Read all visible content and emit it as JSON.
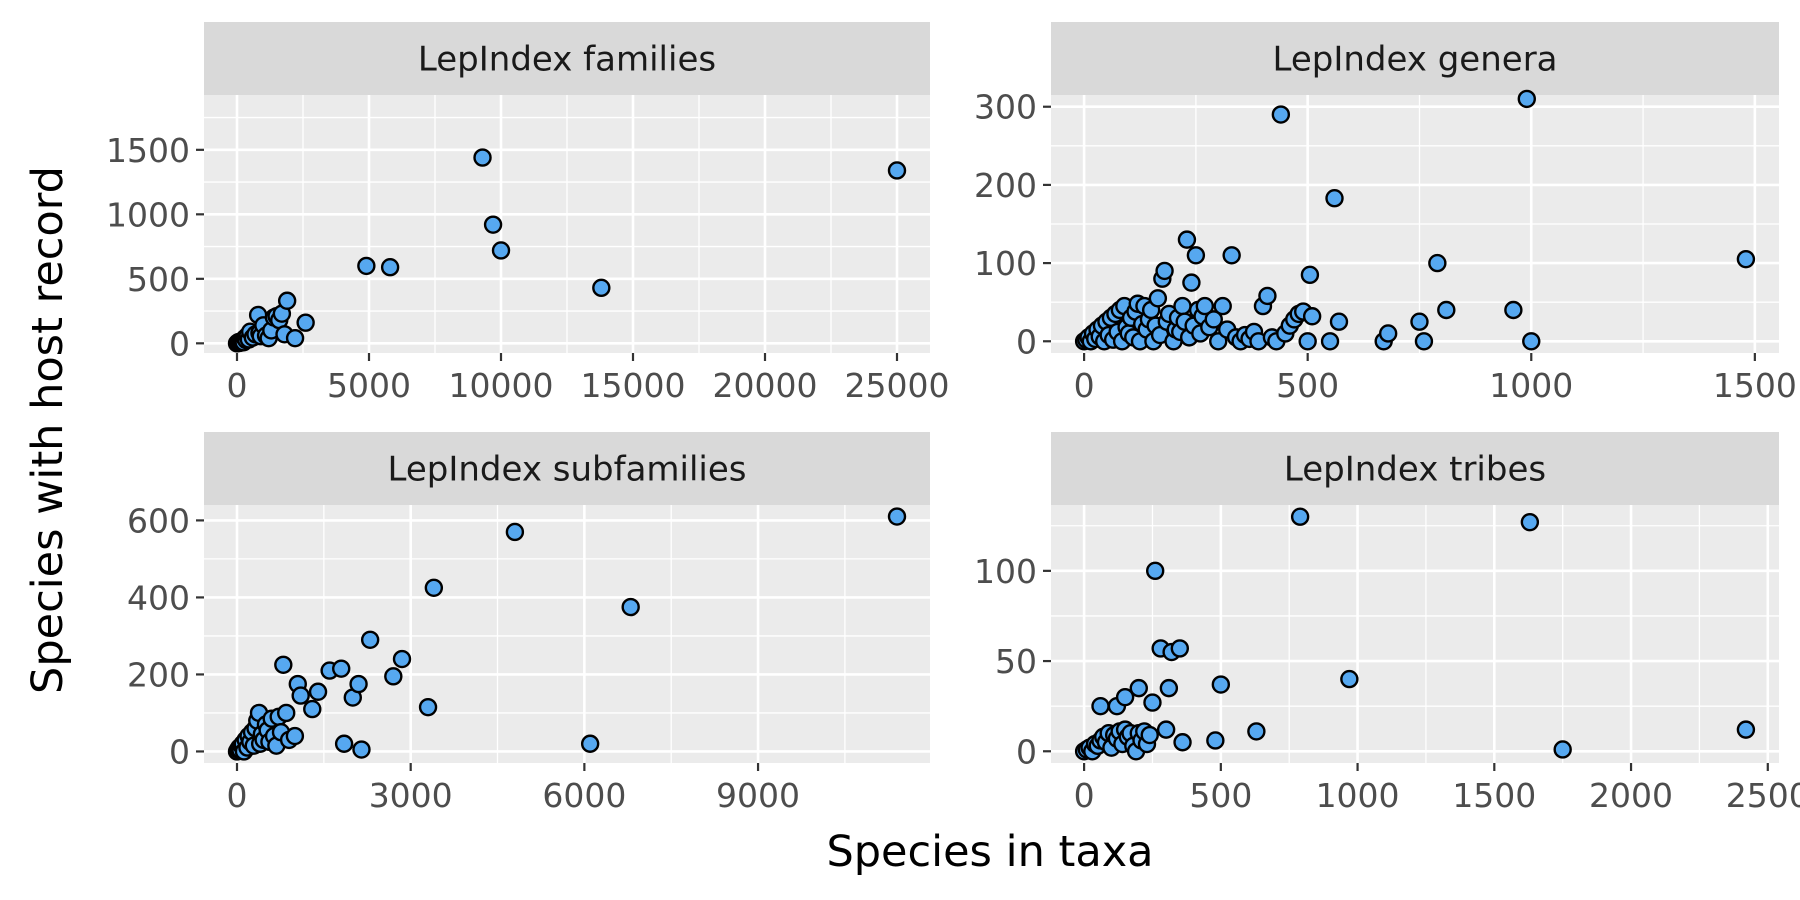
{
  "figure": {
    "xlabel": "Species in taxa",
    "ylabel": "Species with host record",
    "point_fill": "#56a8f0",
    "point_stroke": "#000000",
    "panel_background": "#ebebeb",
    "strip_background": "#d9d9d9"
  },
  "chart_data": [
    {
      "type": "scatter",
      "title": "LepIndex families",
      "xlim": [
        -1250,
        26250
      ],
      "ylim": [
        -75,
        1925
      ],
      "x_breaks": [
        0,
        5000,
        10000,
        15000,
        20000,
        25000
      ],
      "x_tick_labels": [
        "0",
        "5000",
        "10000",
        "15000",
        "20000",
        "25000"
      ],
      "y_breaks": [
        0,
        500,
        1000,
        1500
      ],
      "y_tick_labels": [
        "0",
        "500",
        "1000",
        "1500"
      ],
      "points": [
        [
          0,
          0
        ],
        [
          30,
          5
        ],
        [
          60,
          10
        ],
        [
          100,
          3
        ],
        [
          150,
          15
        ],
        [
          200,
          20
        ],
        [
          250,
          8
        ],
        [
          300,
          40
        ],
        [
          350,
          25
        ],
        [
          400,
          60
        ],
        [
          450,
          30
        ],
        [
          500,
          90
        ],
        [
          600,
          45
        ],
        [
          700,
          70
        ],
        [
          800,
          220
        ],
        [
          850,
          80
        ],
        [
          900,
          55
        ],
        [
          1000,
          140
        ],
        [
          1100,
          60
        ],
        [
          1200,
          40
        ],
        [
          1300,
          100
        ],
        [
          1400,
          200
        ],
        [
          1500,
          210
        ],
        [
          1600,
          180
        ],
        [
          1700,
          230
        ],
        [
          1800,
          70
        ],
        [
          1900,
          330
        ],
        [
          2200,
          40
        ],
        [
          2600,
          160
        ],
        [
          4900,
          600
        ],
        [
          5800,
          590
        ],
        [
          9300,
          1440
        ],
        [
          9700,
          920
        ],
        [
          10000,
          720
        ],
        [
          13800,
          430
        ],
        [
          25000,
          1340
        ]
      ]
    },
    {
      "type": "scatter",
      "title": "LepIndex genera",
      "xlim": [
        -74,
        1554
      ],
      "ylim": [
        -15,
        315
      ],
      "x_breaks": [
        0,
        500,
        1000,
        1500
      ],
      "x_tick_labels": [
        "0",
        "500",
        "1000",
        "1500"
      ],
      "y_breaks": [
        0,
        100,
        200,
        300
      ],
      "y_tick_labels": [
        "0",
        "100",
        "200",
        "300"
      ],
      "points": [
        [
          0,
          0
        ],
        [
          5,
          2
        ],
        [
          10,
          5
        ],
        [
          15,
          0
        ],
        [
          20,
          10
        ],
        [
          25,
          3
        ],
        [
          30,
          15
        ],
        [
          35,
          6
        ],
        [
          40,
          20
        ],
        [
          45,
          0
        ],
        [
          50,
          25
        ],
        [
          55,
          8
        ],
        [
          60,
          30
        ],
        [
          65,
          2
        ],
        [
          70,
          35
        ],
        [
          75,
          12
        ],
        [
          80,
          40
        ],
        [
          85,
          0
        ],
        [
          90,
          45
        ],
        [
          95,
          18
        ],
        [
          100,
          10
        ],
        [
          105,
          30
        ],
        [
          110,
          5
        ],
        [
          115,
          38
        ],
        [
          120,
          48
        ],
        [
          125,
          0
        ],
        [
          130,
          22
        ],
        [
          135,
          45
        ],
        [
          140,
          15
        ],
        [
          145,
          28
        ],
        [
          150,
          40
        ],
        [
          155,
          0
        ],
        [
          160,
          20
        ],
        [
          165,
          55
        ],
        [
          170,
          8
        ],
        [
          175,
          80
        ],
        [
          180,
          90
        ],
        [
          185,
          25
        ],
        [
          190,
          35
        ],
        [
          200,
          0
        ],
        [
          205,
          15
        ],
        [
          210,
          30
        ],
        [
          215,
          12
        ],
        [
          220,
          45
        ],
        [
          225,
          25
        ],
        [
          230,
          130
        ],
        [
          235,
          5
        ],
        [
          240,
          75
        ],
        [
          245,
          20
        ],
        [
          250,
          110
        ],
        [
          255,
          40
        ],
        [
          260,
          10
        ],
        [
          265,
          32
        ],
        [
          270,
          45
        ],
        [
          280,
          18
        ],
        [
          290,
          28
        ],
        [
          300,
          0
        ],
        [
          310,
          45
        ],
        [
          320,
          15
        ],
        [
          330,
          110
        ],
        [
          340,
          5
        ],
        [
          350,
          0
        ],
        [
          360,
          8
        ],
        [
          370,
          3
        ],
        [
          380,
          12
        ],
        [
          390,
          0
        ],
        [
          400,
          45
        ],
        [
          410,
          58
        ],
        [
          420,
          5
        ],
        [
          430,
          0
        ],
        [
          440,
          290
        ],
        [
          450,
          10
        ],
        [
          460,
          20
        ],
        [
          470,
          28
        ],
        [
          480,
          35
        ],
        [
          490,
          38
        ],
        [
          500,
          0
        ],
        [
          505,
          85
        ],
        [
          510,
          32
        ],
        [
          550,
          0
        ],
        [
          560,
          183
        ],
        [
          570,
          25
        ],
        [
          670,
          0
        ],
        [
          680,
          10
        ],
        [
          750,
          25
        ],
        [
          760,
          0
        ],
        [
          790,
          100
        ],
        [
          810,
          40
        ],
        [
          960,
          40
        ],
        [
          990,
          310
        ],
        [
          1000,
          0
        ],
        [
          1480,
          105
        ]
      ]
    },
    {
      "type": "scatter",
      "title": "LepIndex subfamilies",
      "xlim": [
        -570,
        11970
      ],
      "ylim": [
        -30,
        640
      ],
      "x_breaks": [
        0,
        3000,
        6000,
        9000
      ],
      "x_tick_labels": [
        "0",
        "3000",
        "6000",
        "9000"
      ],
      "y_breaks": [
        0,
        200,
        400,
        600
      ],
      "y_tick_labels": [
        "0",
        "200",
        "400",
        "600"
      ],
      "points": [
        [
          0,
          0
        ],
        [
          20,
          5
        ],
        [
          40,
          10
        ],
        [
          60,
          3
        ],
        [
          80,
          15
        ],
        [
          100,
          20
        ],
        [
          120,
          0
        ],
        [
          150,
          30
        ],
        [
          180,
          10
        ],
        [
          200,
          40
        ],
        [
          230,
          25
        ],
        [
          260,
          50
        ],
        [
          290,
          15
        ],
        [
          320,
          60
        ],
        [
          350,
          80
        ],
        [
          380,
          100
        ],
        [
          400,
          20
        ],
        [
          430,
          45
        ],
        [
          460,
          30
        ],
        [
          500,
          70
        ],
        [
          530,
          55
        ],
        [
          560,
          25
        ],
        [
          600,
          85
        ],
        [
          640,
          40
        ],
        [
          680,
          15
        ],
        [
          720,
          90
        ],
        [
          760,
          50
        ],
        [
          800,
          225
        ],
        [
          850,
          100
        ],
        [
          900,
          30
        ],
        [
          1000,
          40
        ],
        [
          1050,
          175
        ],
        [
          1100,
          145
        ],
        [
          1300,
          110
        ],
        [
          1400,
          155
        ],
        [
          1600,
          210
        ],
        [
          1800,
          215
        ],
        [
          1850,
          20
        ],
        [
          2000,
          140
        ],
        [
          2100,
          175
        ],
        [
          2150,
          5
        ],
        [
          2300,
          290
        ],
        [
          2700,
          195
        ],
        [
          2850,
          240
        ],
        [
          3300,
          115
        ],
        [
          3400,
          425
        ],
        [
          4800,
          570
        ],
        [
          6100,
          20
        ],
        [
          6800,
          375
        ],
        [
          11400,
          610
        ]
      ]
    },
    {
      "type": "scatter",
      "title": "LepIndex tribes",
      "xlim": [
        -121,
        2541
      ],
      "ylim": [
        -6.5,
        136.5
      ],
      "x_breaks": [
        0,
        500,
        1000,
        1500,
        2000,
        2500
      ],
      "x_tick_labels": [
        "0",
        "500",
        "1000",
        "1500",
        "2000",
        "2500"
      ],
      "y_breaks": [
        0,
        50,
        100
      ],
      "y_tick_labels": [
        "0",
        "50",
        "100"
      ],
      "points": [
        [
          0,
          0
        ],
        [
          10,
          1
        ],
        [
          20,
          2
        ],
        [
          30,
          0
        ],
        [
          40,
          4
        ],
        [
          50,
          3
        ],
        [
          60,
          6
        ],
        [
          70,
          8
        ],
        [
          80,
          5
        ],
        [
          90,
          10
        ],
        [
          100,
          2
        ],
        [
          110,
          9
        ],
        [
          120,
          7
        ],
        [
          130,
          11
        ],
        [
          140,
          4
        ],
        [
          150,
          12
        ],
        [
          160,
          8
        ],
        [
          170,
          10
        ],
        [
          180,
          3
        ],
        [
          190,
          0
        ],
        [
          200,
          10
        ],
        [
          210,
          6
        ],
        [
          220,
          11
        ],
        [
          230,
          4
        ],
        [
          240,
          9
        ],
        [
          60,
          25
        ],
        [
          120,
          25
        ],
        [
          150,
          30
        ],
        [
          200,
          35
        ],
        [
          250,
          27
        ],
        [
          260,
          100
        ],
        [
          280,
          57
        ],
        [
          300,
          12
        ],
        [
          310,
          35
        ],
        [
          320,
          55
        ],
        [
          350,
          57
        ],
        [
          360,
          5
        ],
        [
          480,
          6
        ],
        [
          500,
          37
        ],
        [
          630,
          11
        ],
        [
          790,
          130
        ],
        [
          970,
          40
        ],
        [
          1630,
          127
        ],
        [
          1750,
          1
        ],
        [
          2420,
          12
        ]
      ]
    }
  ]
}
